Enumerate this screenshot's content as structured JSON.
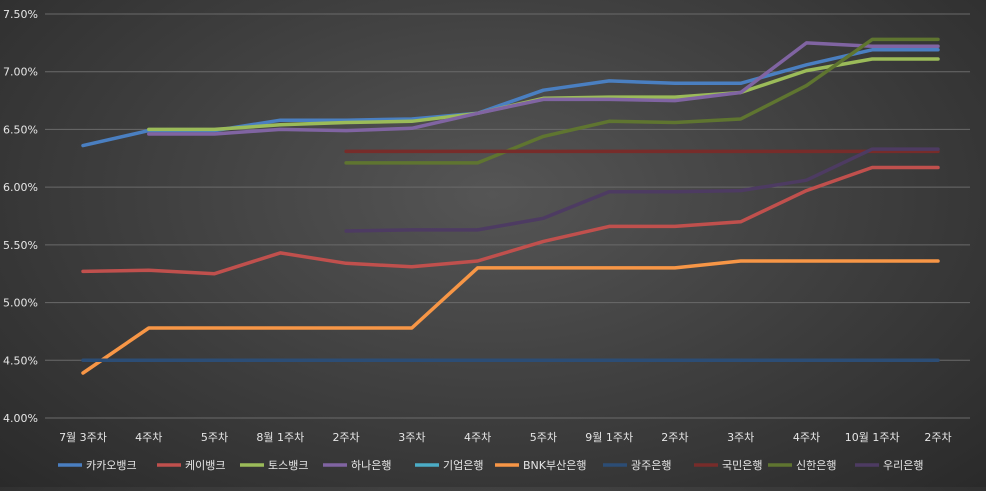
{
  "chart_data": {
    "type": "line",
    "title": "",
    "xlabel": "",
    "ylabel": "",
    "ylim": [
      0.04,
      0.075
    ],
    "y_ticks": [
      "4.00%",
      "4.50%",
      "5.00%",
      "5.50%",
      "6.00%",
      "6.50%",
      "7.00%",
      "7.50%"
    ],
    "grid": true,
    "legend_position": "bottom",
    "categories": [
      "7월 3주차",
      "4주차",
      "5주차",
      "8월 1주차",
      "2주차",
      "3주차",
      "4주차",
      "5주차",
      "9월 1주차",
      "2주차",
      "3주차",
      "4주차",
      "10월 1주차",
      "2주차"
    ],
    "series": [
      {
        "name": "카카오뱅크",
        "color": "#4a7fc1",
        "values": [
          0.0636,
          0.0649,
          0.0649,
          0.0658,
          0.0658,
          0.0659,
          0.0664,
          0.0684,
          0.0692,
          0.069,
          0.069,
          0.0706,
          0.0719,
          0.0719
        ]
      },
      {
        "name": "케이뱅크",
        "color": "#c0504d",
        "values": [
          0.0527,
          0.0528,
          0.0525,
          0.0543,
          0.0534,
          0.0531,
          0.0536,
          0.0553,
          0.0566,
          0.0566,
          0.057,
          0.0597,
          0.0617,
          0.0617
        ]
      },
      {
        "name": "토스뱅크",
        "color": "#9bbb59",
        "values": [
          null,
          0.065,
          0.065,
          0.0654,
          0.0656,
          0.0657,
          0.0664,
          0.0677,
          0.0678,
          0.0678,
          0.0682,
          0.0701,
          0.0711,
          0.0711
        ]
      },
      {
        "name": "하나은행",
        "color": "#8064a2",
        "values": [
          null,
          0.0646,
          0.0646,
          0.065,
          0.0649,
          0.0651,
          0.0664,
          0.0676,
          0.0676,
          0.0675,
          0.0682,
          0.0725,
          0.0722,
          0.0722
        ]
      },
      {
        "name": "기업은행",
        "color": "#4bacc6",
        "values": [
          null,
          null,
          null,
          null,
          null,
          null,
          null,
          null,
          null,
          null,
          null,
          null,
          null,
          null
        ]
      },
      {
        "name": "BNK부산은행",
        "color": "#f79646",
        "values": [
          0.0439,
          0.0478,
          0.0478,
          0.0478,
          0.0478,
          0.0478,
          0.053,
          0.053,
          0.053,
          0.053,
          0.0536,
          0.0536,
          0.0536,
          0.0536
        ]
      },
      {
        "name": "광주은행",
        "color": "#2c4d75",
        "values": [
          0.045,
          0.045,
          0.045,
          0.045,
          0.045,
          0.045,
          0.045,
          0.045,
          0.045,
          0.045,
          0.045,
          0.045,
          0.045,
          0.045
        ]
      },
      {
        "name": "국민은행",
        "color": "#772c2a",
        "values": [
          null,
          null,
          null,
          null,
          0.0631,
          0.0631,
          0.0631,
          0.0631,
          0.0631,
          0.0631,
          0.0631,
          0.0631,
          0.0631,
          0.0631
        ]
      },
      {
        "name": "신한은행",
        "color": "#5f7530",
        "values": [
          null,
          null,
          null,
          null,
          0.0621,
          0.0621,
          0.0621,
          0.0644,
          0.0657,
          0.0656,
          0.0659,
          0.0688,
          0.0728,
          0.0728
        ]
      },
      {
        "name": "우리은행",
        "color": "#4d3b62",
        "values": [
          null,
          null,
          null,
          null,
          0.0562,
          0.0563,
          0.0563,
          0.0573,
          0.0596,
          0.0596,
          0.0597,
          0.0606,
          0.0633,
          0.0633
        ]
      }
    ]
  }
}
